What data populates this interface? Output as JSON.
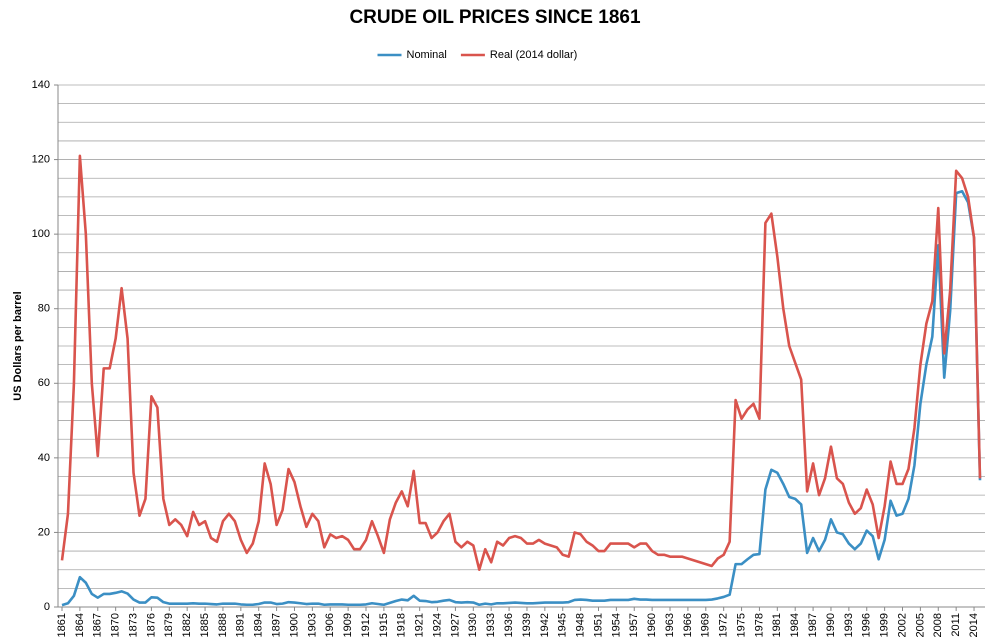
{
  "chart_data": {
    "type": "line",
    "title": "CRUDE OIL PRICES SINCE 1861",
    "y_label": "US Dollars per barrel",
    "legend": "top",
    "x": [
      1861,
      1862,
      1863,
      1864,
      1865,
      1866,
      1867,
      1868,
      1869,
      1870,
      1871,
      1872,
      1873,
      1874,
      1875,
      1876,
      1877,
      1878,
      1879,
      1880,
      1881,
      1882,
      1883,
      1884,
      1885,
      1886,
      1887,
      1888,
      1889,
      1890,
      1891,
      1892,
      1893,
      1894,
      1895,
      1896,
      1897,
      1898,
      1899,
      1900,
      1901,
      1902,
      1903,
      1904,
      1905,
      1906,
      1907,
      1908,
      1909,
      1910,
      1911,
      1912,
      1913,
      1914,
      1915,
      1916,
      1917,
      1918,
      1919,
      1920,
      1921,
      1922,
      1923,
      1924,
      1925,
      1926,
      1927,
      1928,
      1929,
      1930,
      1931,
      1932,
      1933,
      1934,
      1935,
      1936,
      1937,
      1938,
      1939,
      1940,
      1941,
      1942,
      1943,
      1944,
      1945,
      1946,
      1947,
      1948,
      1949,
      1950,
      1951,
      1952,
      1953,
      1954,
      1955,
      1956,
      1957,
      1958,
      1959,
      1960,
      1961,
      1962,
      1963,
      1964,
      1965,
      1966,
      1967,
      1968,
      1969,
      1970,
      1971,
      1972,
      1973,
      1974,
      1975,
      1976,
      1977,
      1978,
      1979,
      1980,
      1981,
      1982,
      1983,
      1984,
      1985,
      1986,
      1987,
      1988,
      1989,
      1990,
      1991,
      1992,
      1993,
      1994,
      1995,
      1996,
      1997,
      1998,
      1999,
      2000,
      2001,
      2002,
      2003,
      2004,
      2005,
      2006,
      2007,
      2008,
      2009,
      2010,
      2011,
      2012,
      2013,
      2014,
      2015
    ],
    "series": [
      {
        "name": "Nominal",
        "color": "#3b8fc4",
        "values": [
          0.5,
          1,
          3,
          8,
          6.5,
          3.5,
          2.5,
          3.5,
          3.5,
          3.8,
          4.2,
          3.6,
          2,
          1.2,
          1.2,
          2.6,
          2.5,
          1.3,
          0.9,
          0.9,
          0.9,
          0.9,
          1,
          0.9,
          0.9,
          0.8,
          0.7,
          0.9,
          0.9,
          0.9,
          0.7,
          0.6,
          0.6,
          0.8,
          1.2,
          1.2,
          0.8,
          0.9,
          1.3,
          1.2,
          1,
          0.8,
          0.9,
          0.9,
          0.6,
          0.7,
          0.7,
          0.7,
          0.6,
          0.6,
          0.6,
          0.7,
          1,
          0.8,
          0.6,
          1.1,
          1.6,
          2,
          1.8,
          3,
          1.7,
          1.6,
          1.3,
          1.4,
          1.7,
          1.9,
          1.3,
          1.2,
          1.3,
          1.2,
          0.6,
          0.9,
          0.7,
          1,
          1,
          1.1,
          1.2,
          1.1,
          1,
          1,
          1.1,
          1.2,
          1.2,
          1.2,
          1.2,
          1.3,
          1.9,
          2,
          1.9,
          1.7,
          1.7,
          1.7,
          1.9,
          1.9,
          1.9,
          1.9,
          2.2,
          2,
          2,
          1.9,
          1.9,
          1.9,
          1.9,
          1.9,
          1.9,
          1.9,
          1.9,
          1.9,
          1.9,
          2,
          2.3,
          2.7,
          3.3,
          11.5,
          11.5,
          12.8,
          14,
          14.2,
          31.5,
          36.8,
          36,
          33,
          29.5,
          29,
          27.5,
          14.5,
          18.5,
          15,
          18,
          23.5,
          20,
          19.5,
          17,
          15.5,
          17,
          20.5,
          19,
          12.8,
          18,
          28.5,
          24.5,
          25,
          29,
          38,
          54.5,
          65,
          72.5,
          97,
          61.5,
          79.5,
          111,
          111.5,
          108.5,
          99,
          34
        ]
      },
      {
        "name": "Real (2014 dollar)",
        "color": "#d9544d",
        "values": [
          12.5,
          25,
          60,
          121,
          100,
          60,
          40.5,
          64,
          64,
          72,
          85.5,
          72,
          36,
          24.5,
          29,
          56.5,
          53.5,
          29,
          22,
          23.5,
          22,
          19,
          25.5,
          22,
          23,
          18.5,
          17.5,
          23,
          25,
          23,
          18,
          14.5,
          17,
          23,
          38.5,
          33,
          22,
          26,
          37,
          33.5,
          27,
          21.5,
          25,
          23,
          16,
          19.5,
          18.5,
          19,
          18,
          15.5,
          15.5,
          18,
          23,
          19,
          14.5,
          23.5,
          28,
          31,
          27,
          36.5,
          22.5,
          22.5,
          18.5,
          20,
          23,
          25,
          17.5,
          16,
          17.5,
          16.5,
          10,
          15.5,
          12,
          17.5,
          16.5,
          18.5,
          19,
          18.5,
          17,
          17,
          18,
          17,
          16.5,
          16,
          14,
          13.5,
          20,
          19.5,
          17.5,
          16.5,
          15,
          15,
          17,
          17,
          17,
          17,
          16,
          17,
          17,
          15,
          14,
          14,
          13.5,
          13.5,
          13.5,
          13,
          12.5,
          12,
          11.5,
          11,
          13,
          14,
          17.5,
          55.5,
          50.5,
          53,
          54.5,
          50.5,
          103,
          105.5,
          94,
          80,
          70,
          65.5,
          61,
          31,
          38.5,
          30,
          34.5,
          43,
          34.5,
          33,
          28,
          25,
          26.5,
          31.5,
          27.5,
          18.5,
          27,
          39,
          33,
          33,
          37,
          48,
          65,
          76,
          82,
          107,
          68,
          85,
          117,
          115,
          110,
          99,
          34.5
        ]
      }
    ],
    "xlim": [
      1861,
      2015
    ],
    "xticks": [
      1861,
      1864,
      1867,
      1870,
      1873,
      1876,
      1879,
      1882,
      1885,
      1888,
      1891,
      1894,
      1897,
      1900,
      1903,
      1906,
      1909,
      1912,
      1915,
      1918,
      1921,
      1924,
      1927,
      1930,
      1933,
      1936,
      1939,
      1942,
      1945,
      1948,
      1951,
      1954,
      1957,
      1960,
      1963,
      1966,
      1969,
      1972,
      1975,
      1978,
      1981,
      1984,
      1987,
      1990,
      1993,
      1996,
      1999,
      2002,
      2005,
      2008,
      2011,
      2014
    ],
    "ylim": [
      0,
      140
    ],
    "yticks": [
      0,
      20,
      40,
      60,
      80,
      100,
      120,
      140
    ],
    "ygrid": [
      0,
      5,
      10,
      15,
      20,
      25,
      30,
      35,
      40,
      45,
      50,
      55,
      60,
      65,
      70,
      75,
      80,
      85,
      90,
      95,
      100,
      105,
      110,
      115,
      120,
      125,
      130,
      135,
      140
    ]
  }
}
